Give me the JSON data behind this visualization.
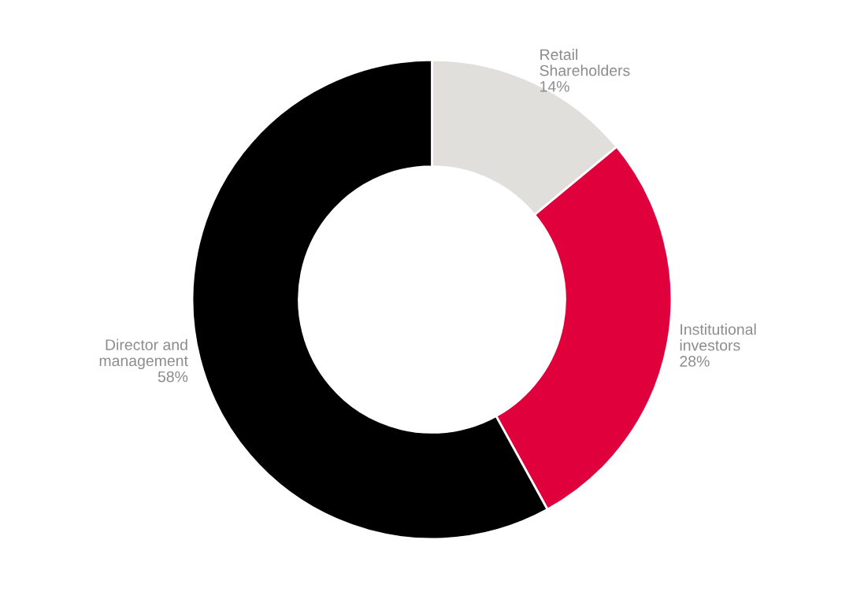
{
  "chart_data": {
    "type": "donut",
    "categories": [
      "Retail Shareholders",
      "Institutional investors",
      "Director and management"
    ],
    "values": [
      14,
      28,
      58
    ],
    "value_labels": [
      "14%",
      "28%",
      "58%"
    ],
    "colors": [
      "#e0dfdb",
      "#e0003c",
      "#000000"
    ],
    "legend": false
  }
}
